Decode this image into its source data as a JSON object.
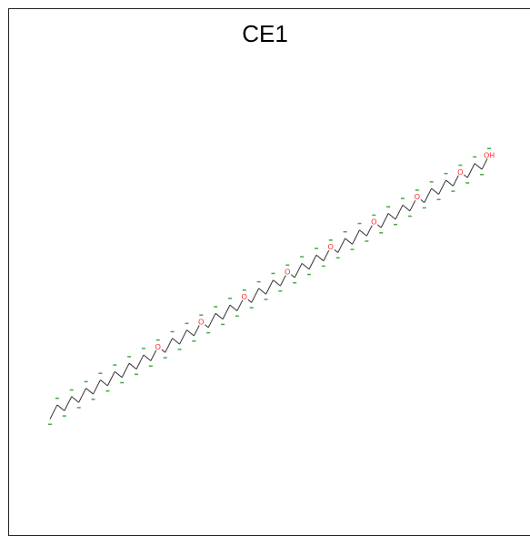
{
  "title": "CE1",
  "colors": {
    "bond": "#333333",
    "oxygen": "#ff2020",
    "atom_name": "#44aa44"
  },
  "molecule": {
    "atom_count": 62,
    "oxygen_indices": [
      15,
      21,
      27,
      33,
      39,
      45,
      51,
      57,
      61
    ],
    "terminal_label": "OH",
    "oxygen_label": "O"
  }
}
